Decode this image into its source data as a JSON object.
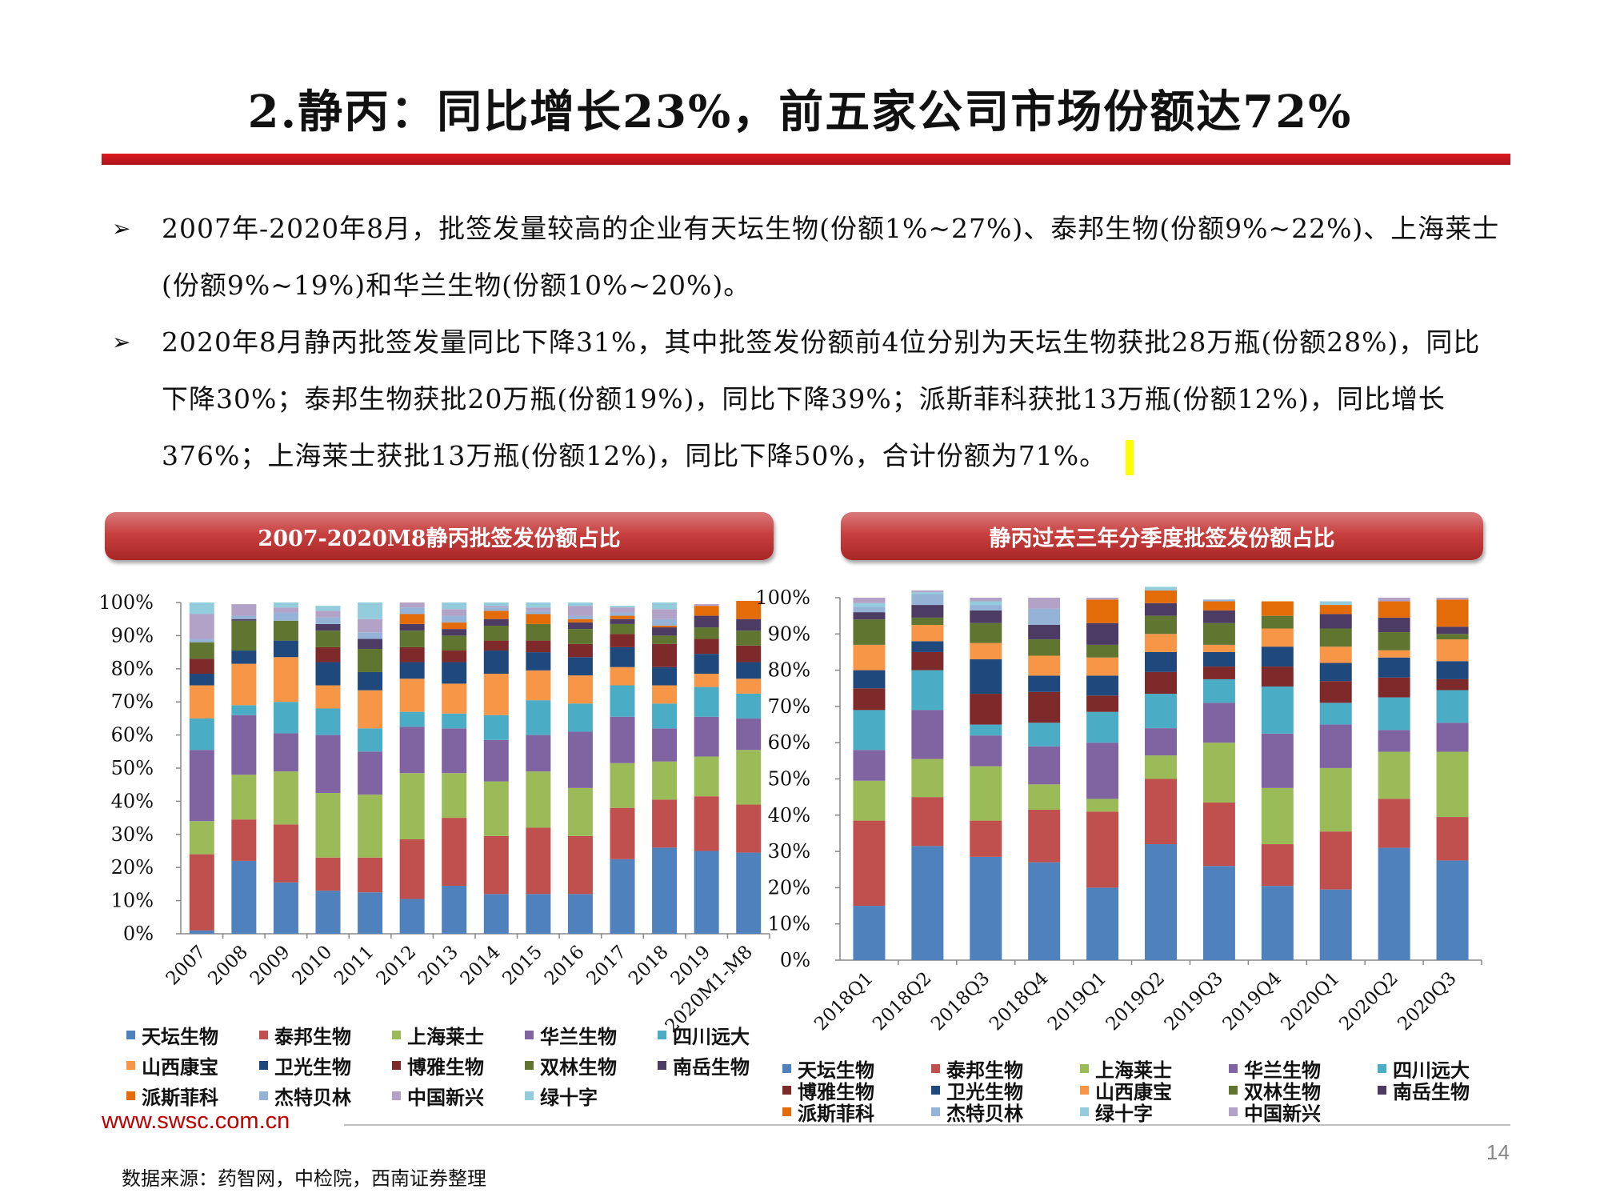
{
  "slide": {
    "title": "2.静丙：同比增长23%，前五家公司市场份额达72%",
    "bullets": [
      "2007年-2020年8月，批签发量较高的企业有天坛生物(份额1%~27%)、泰邦生物(份额9%~22%)、上海莱士(份额9%~19%)和华兰生物(份额10%~20%)。",
      "2020年8月静丙批签发量同比下降31%，其中批签发份额前4位分别为天坛生物获批28万瓶(份额28%)，同比下降30%；泰邦生物获批20万瓶(份额19%)，同比下降39%；派斯菲科获批13万瓶(份额12%)，同比增长376%；上海莱士获批13万瓶(份额12%)，同比下降50%，合计份额为71%。"
    ],
    "bullet_symbol": "➢",
    "website": "www.swsc.com.cn",
    "source": "数据来源：药智网，中检院，西南证券整理",
    "page_number": "14"
  },
  "colors": {
    "天坛生物": "#4f81bd",
    "泰邦生物": "#c0504d",
    "上海莱士": "#9bbb59",
    "华兰生物": "#8064a2",
    "四川远大": "#4bacc6",
    "山西康宝": "#f79646",
    "卫光生物": "#1f497d",
    "博雅生物": "#7f2a2a",
    "双林生物": "#5f7530",
    "南岳生物": "#4c3b63",
    "派斯菲科": "#e36c09",
    "杰特贝林": "#95b3d7",
    "中国新兴": "#b3a2c7",
    "绿十字": "#93cddd"
  },
  "chart_data": [
    {
      "type": "bar",
      "stacked": true,
      "title": "2007-2020M8静丙批签发份额占比",
      "ylim": [
        0,
        100
      ],
      "yticks": [
        "0%",
        "10%",
        "20%",
        "30%",
        "40%",
        "50%",
        "60%",
        "70%",
        "80%",
        "90%",
        "100%"
      ],
      "categories": [
        "2007",
        "2008",
        "2009",
        "2010",
        "2011",
        "2012",
        "2013",
        "2014",
        "2015",
        "2016",
        "2017",
        "2018",
        "2019",
        "2020M1-M8"
      ],
      "legend_order": [
        "天坛生物",
        "泰邦生物",
        "上海莱士",
        "华兰生物",
        "四川远大",
        "山西康宝",
        "卫光生物",
        "博雅生物",
        "双林生物",
        "南岳生物",
        "派斯菲科",
        "杰特贝林",
        "中国新兴",
        "绿十字"
      ],
      "series": [
        {
          "name": "天坛生物",
          "values": [
            1,
            22,
            15.5,
            13,
            12.5,
            10.5,
            14.5,
            12,
            12,
            12,
            22.5,
            26,
            25,
            24.5
          ]
        },
        {
          "name": "泰邦生物",
          "values": [
            23,
            12.5,
            17.5,
            10,
            10.5,
            18,
            20.5,
            17.5,
            20,
            17.5,
            15.5,
            14.5,
            16.5,
            14.5
          ]
        },
        {
          "name": "上海莱士",
          "values": [
            10,
            13.5,
            16,
            19.5,
            19,
            20,
            13.5,
            16.5,
            17,
            14.5,
            13.5,
            11.5,
            12,
            16.5
          ]
        },
        {
          "name": "华兰生物",
          "values": [
            21.5,
            18,
            11.5,
            17.5,
            13,
            14,
            13.5,
            12.5,
            11,
            17,
            14,
            10,
            12,
            9.5
          ]
        },
        {
          "name": "四川远大",
          "values": [
            9.5,
            3,
            9.5,
            8,
            7,
            4.5,
            4.5,
            7.5,
            10.5,
            8.5,
            9.5,
            7.5,
            9,
            7.5
          ]
        },
        {
          "name": "山西康宝",
          "values": [
            10,
            12.5,
            13.5,
            7,
            11.5,
            10,
            9,
            12.5,
            9,
            8.5,
            5.5,
            5.5,
            4,
            4.5
          ]
        },
        {
          "name": "卫光生物",
          "values": [
            3.5,
            4,
            5,
            7,
            5.5,
            5,
            6.5,
            7,
            5.5,
            5.5,
            6,
            5.5,
            6,
            5
          ]
        },
        {
          "name": "博雅生物",
          "values": [
            4.5,
            0,
            0,
            4.5,
            0,
            4.5,
            3.5,
            3,
            3.5,
            4,
            4,
            7,
            4.5,
            5
          ]
        },
        {
          "name": "双林生物",
          "values": [
            5,
            9,
            6,
            5,
            7,
            5,
            4.5,
            4.5,
            5,
            4.5,
            3,
            2.5,
            3.5,
            4.5
          ]
        },
        {
          "name": "南岳生物",
          "values": [
            0,
            0.5,
            0,
            2,
            3,
            2,
            2,
            2,
            0,
            2,
            1.5,
            2.5,
            3.5,
            3.5
          ]
        },
        {
          "name": "派斯菲科",
          "values": [
            0,
            0,
            0,
            0,
            0,
            3,
            2,
            2.5,
            3,
            1,
            1,
            0.5,
            3,
            5.5
          ]
        },
        {
          "name": "杰特贝林",
          "values": [
            1,
            1,
            2.5,
            2,
            2,
            2,
            2,
            1,
            1,
            1,
            1,
            2,
            0,
            0
          ]
        },
        {
          "name": "中国新兴",
          "values": [
            7.5,
            3.5,
            1.5,
            2,
            4,
            1.5,
            2,
            0.5,
            1,
            3,
            1.5,
            3,
            0.5,
            0
          ]
        },
        {
          "name": "绿十字",
          "values": [
            3.5,
            0,
            1.5,
            1.5,
            5,
            0,
            2,
            1,
            1.5,
            1,
            0.5,
            2,
            0,
            0
          ]
        }
      ]
    },
    {
      "type": "bar",
      "stacked": true,
      "title": "静丙过去三年分季度批签发份额占比",
      "ylim": [
        0,
        100
      ],
      "yticks": [
        "0%",
        "10%",
        "20%",
        "30%",
        "40%",
        "50%",
        "60%",
        "70%",
        "80%",
        "90%",
        "100%"
      ],
      "categories": [
        "2018Q1",
        "2018Q2",
        "2018Q3",
        "2018Q4",
        "2019Q1",
        "2019Q2",
        "2019Q3",
        "2019Q4",
        "2020Q1",
        "2020Q2",
        "2020Q3"
      ],
      "legend_order": [
        "天坛生物",
        "泰邦生物",
        "上海莱士",
        "华兰生物",
        "四川远大",
        "博雅生物",
        "卫光生物",
        "山西康宝",
        "双林生物",
        "南岳生物",
        "派斯菲科",
        "杰特贝林",
        "绿十字",
        "中国新兴"
      ],
      "series": [
        {
          "name": "天坛生物",
          "values": [
            15,
            31.5,
            28.5,
            27,
            20,
            32,
            26,
            20.5,
            19.5,
            31,
            27.5
          ]
        },
        {
          "name": "泰邦生物",
          "values": [
            23.5,
            13.5,
            10,
            14.5,
            21,
            18,
            17.5,
            11.5,
            16,
            13.5,
            12
          ]
        },
        {
          "name": "上海莱士",
          "values": [
            11,
            10.5,
            15,
            7,
            3.5,
            6.5,
            16.5,
            15.5,
            17.5,
            13,
            18
          ]
        },
        {
          "name": "华兰生物",
          "values": [
            8.5,
            13.5,
            8.5,
            10.5,
            15.5,
            7.5,
            11,
            15,
            12,
            6,
            8
          ]
        },
        {
          "name": "四川远大",
          "values": [
            11,
            11,
            3,
            6.5,
            8.5,
            9.5,
            6.5,
            13,
            6,
            9,
            9
          ]
        },
        {
          "name": "博雅生物",
          "values": [
            6,
            5,
            8.5,
            8.5,
            4.5,
            6,
            3.5,
            5.5,
            6,
            5.5,
            3
          ]
        },
        {
          "name": "卫光生物",
          "values": [
            5,
            3,
            9.5,
            4.5,
            5.5,
            5.5,
            4,
            5.5,
            5,
            5.5,
            5
          ]
        },
        {
          "name": "山西康宝",
          "values": [
            7,
            4.5,
            4.5,
            5.5,
            5,
            5,
            2,
            5,
            4.5,
            2,
            6
          ]
        },
        {
          "name": "双林生物",
          "values": [
            7,
            2,
            5.5,
            4.5,
            3.5,
            5,
            6,
            3.5,
            5,
            5,
            1.5
          ]
        },
        {
          "name": "南岳生物",
          "values": [
            2,
            3.5,
            3.5,
            4,
            6,
            3.5,
            3.5,
            0,
            4,
            4,
            2
          ]
        },
        {
          "name": "派斯菲科",
          "values": [
            0,
            0,
            0,
            0,
            6.5,
            3.5,
            2.5,
            4,
            2.5,
            4.5,
            7.5
          ]
        },
        {
          "name": "杰特贝林",
          "values": [
            1.5,
            3,
            1.5,
            4.5,
            0,
            0,
            0.5,
            0,
            0,
            0,
            0
          ]
        },
        {
          "name": "绿十字",
          "values": [
            1,
            0.5,
            1,
            0,
            0,
            1,
            0,
            0,
            1,
            0,
            0
          ]
        },
        {
          "name": "中国新兴",
          "values": [
            1.5,
            0.5,
            1,
            3,
            0.5,
            0,
            0,
            0,
            0,
            1,
            0.5
          ]
        }
      ]
    }
  ]
}
